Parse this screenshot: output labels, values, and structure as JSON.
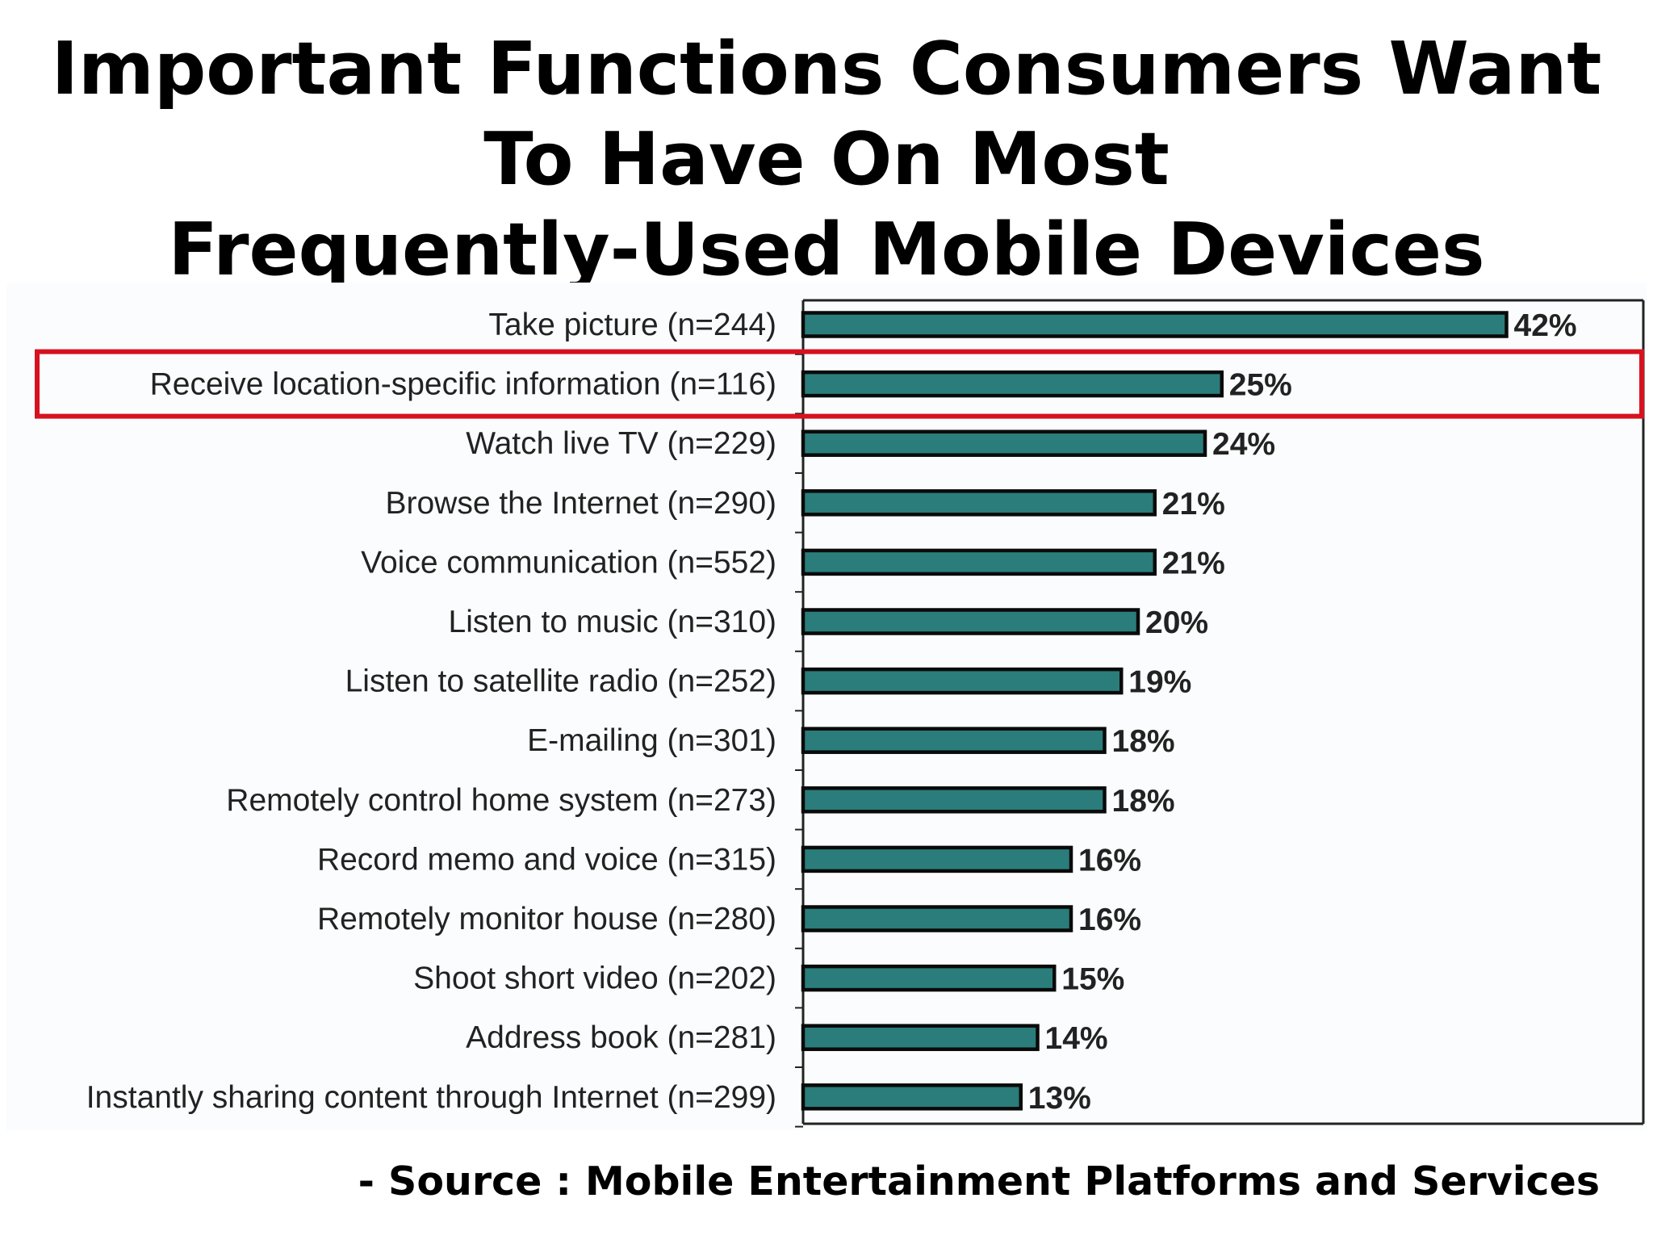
{
  "title_lines": [
    "Important Functions Consumers Want",
    "To Have On Most",
    "Frequently-Used Mobile Devices"
  ],
  "source": "- Source : Mobile Entertainment Platforms and Services",
  "colors": {
    "bar_fill": "#2a7d7a",
    "bar_outline": "#0a0a0a",
    "highlight_box": "#d6121e",
    "axis": "#222222"
  },
  "chart_data": {
    "type": "bar",
    "orientation": "horizontal",
    "categories": [
      "Take picture (n=244)",
      "Receive location-specific information (n=116)",
      "Watch live TV (n=229)",
      "Browse the Internet (n=290)",
      "Voice communication (n=552)",
      "Listen to music (n=310)",
      "Listen to satellite radio (n=252)",
      "E-mailing (n=301)",
      "Remotely control home system (n=273)",
      "Record memo and voice (n=315)",
      "Remotely monitor house (n=280)",
      "Shoot short video (n=202)",
      "Address book (n=281)",
      "Instantly sharing content through Internet (n=299)"
    ],
    "values": [
      42,
      25,
      24,
      21,
      21,
      20,
      19,
      18,
      18,
      16,
      16,
      15,
      14,
      13
    ],
    "value_labels": [
      "42%",
      "25%",
      "24%",
      "21%",
      "21%",
      "20%",
      "19%",
      "18%",
      "18%",
      "16%",
      "16%",
      "15%",
      "14%",
      "13%"
    ],
    "unit": "%",
    "xlim": [
      0,
      50
    ],
    "highlighted_category": "Receive location-specific information (n=116)",
    "grid": false,
    "legend": "none"
  }
}
